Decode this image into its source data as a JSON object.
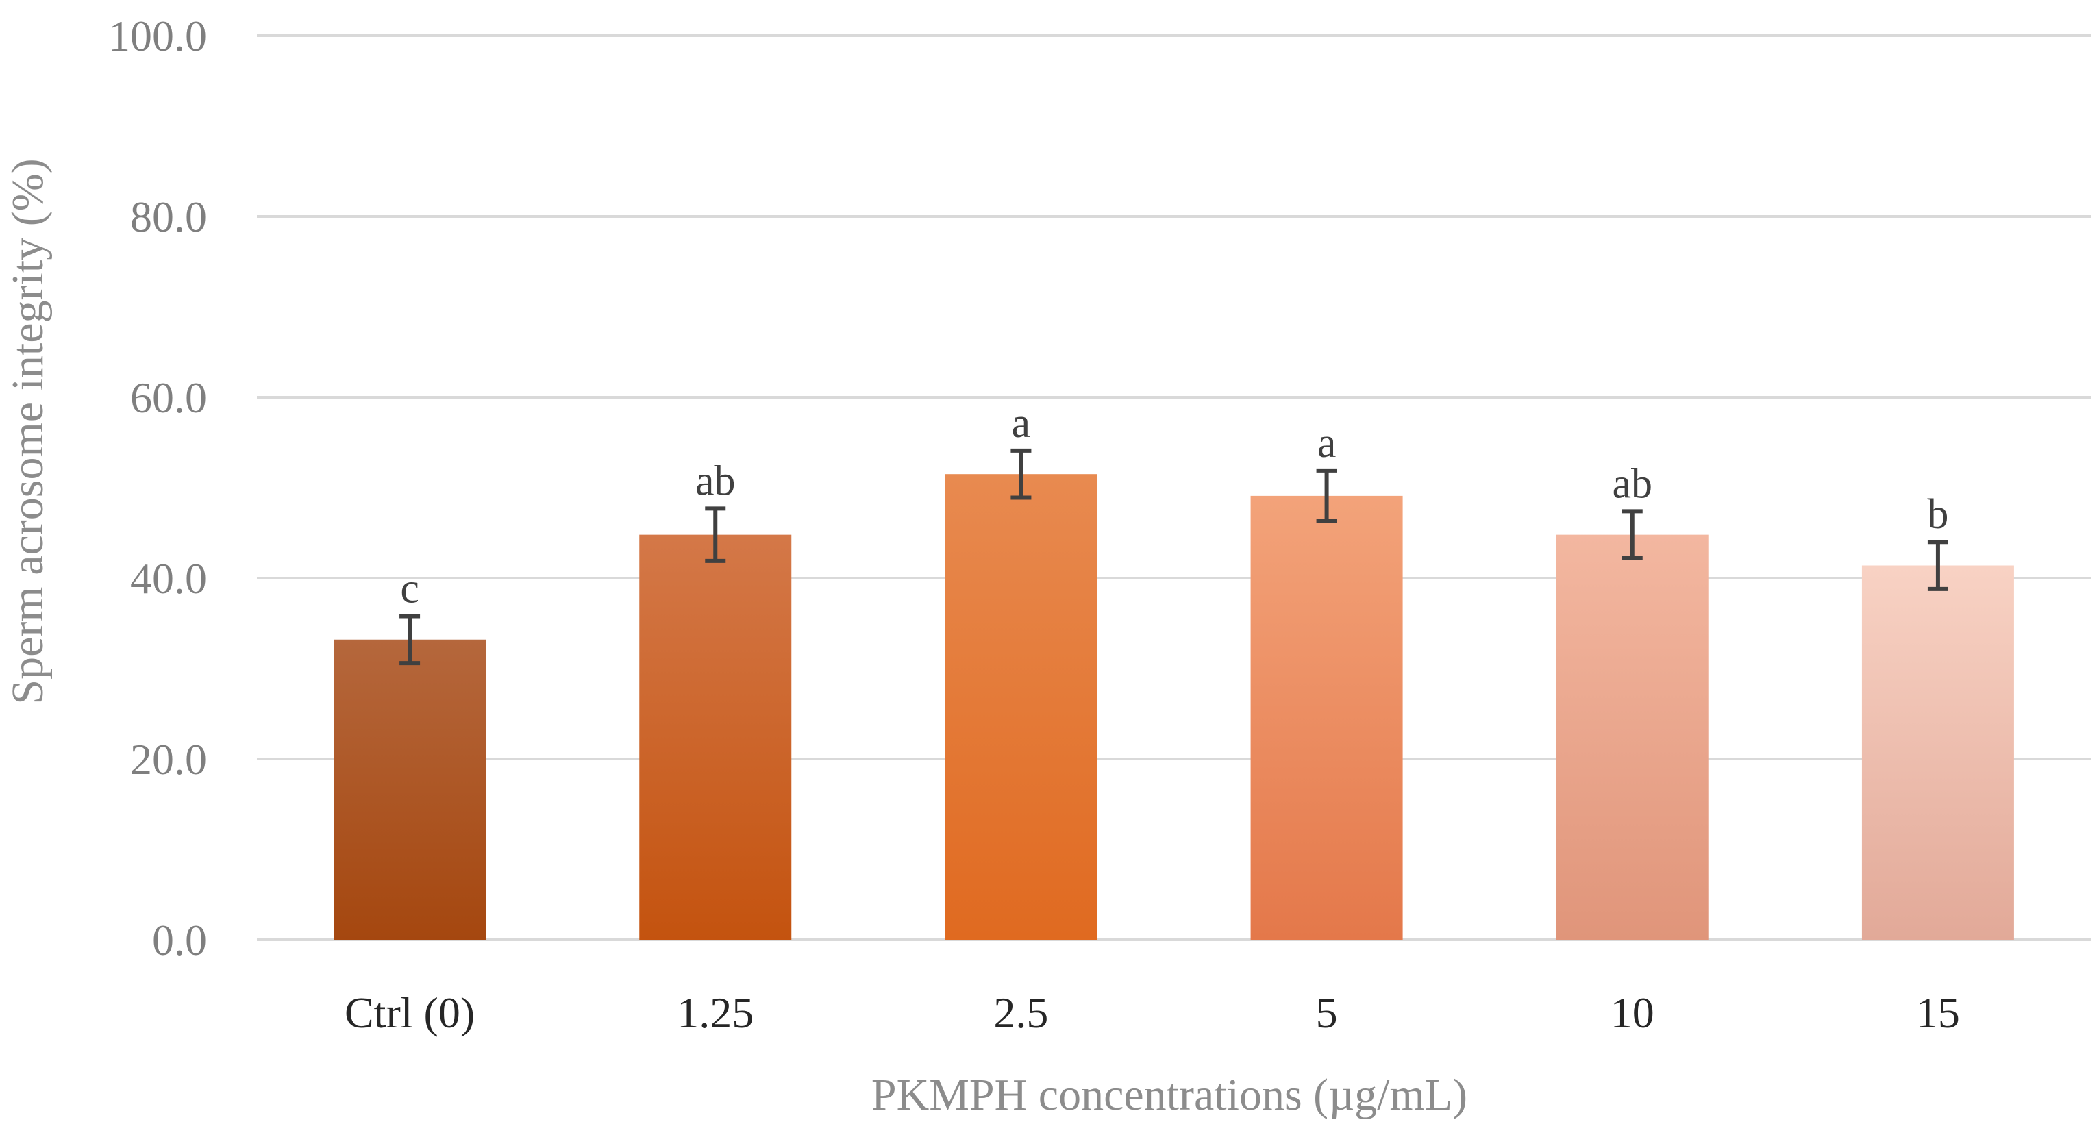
{
  "chart_data": {
    "type": "bar",
    "title": "",
    "xlabel": "PKMPH concentrations  (µg/mL)",
    "ylabel": "Sperm acrosome integrity (%)",
    "ylim": [
      0,
      100
    ],
    "yticks": [
      "0.0",
      "20.0",
      "40.0",
      "60.0",
      "80.0",
      "100.0"
    ],
    "categories": [
      "Ctrl (0)",
      "1.25",
      "2.5",
      "5",
      "10",
      "15"
    ],
    "values": [
      33.2,
      44.8,
      51.5,
      49.1,
      44.8,
      41.4
    ],
    "error": [
      2.6,
      2.9,
      2.6,
      2.8,
      2.6,
      2.6
    ],
    "significance_labels": [
      "c",
      "ab",
      "a",
      "a",
      "ab",
      "b"
    ],
    "grid": true,
    "colors": [
      [
        "#b5673c",
        "#a5470f"
      ],
      [
        "#d47848",
        "#c4530f"
      ],
      [
        "#e88a50",
        "#e06a20"
      ],
      [
        "#f3a37a",
        "#e4784a"
      ],
      [
        "#f3b7a0",
        "#e0957a"
      ],
      [
        "#f8d2c4",
        "#e2a998"
      ]
    ]
  }
}
